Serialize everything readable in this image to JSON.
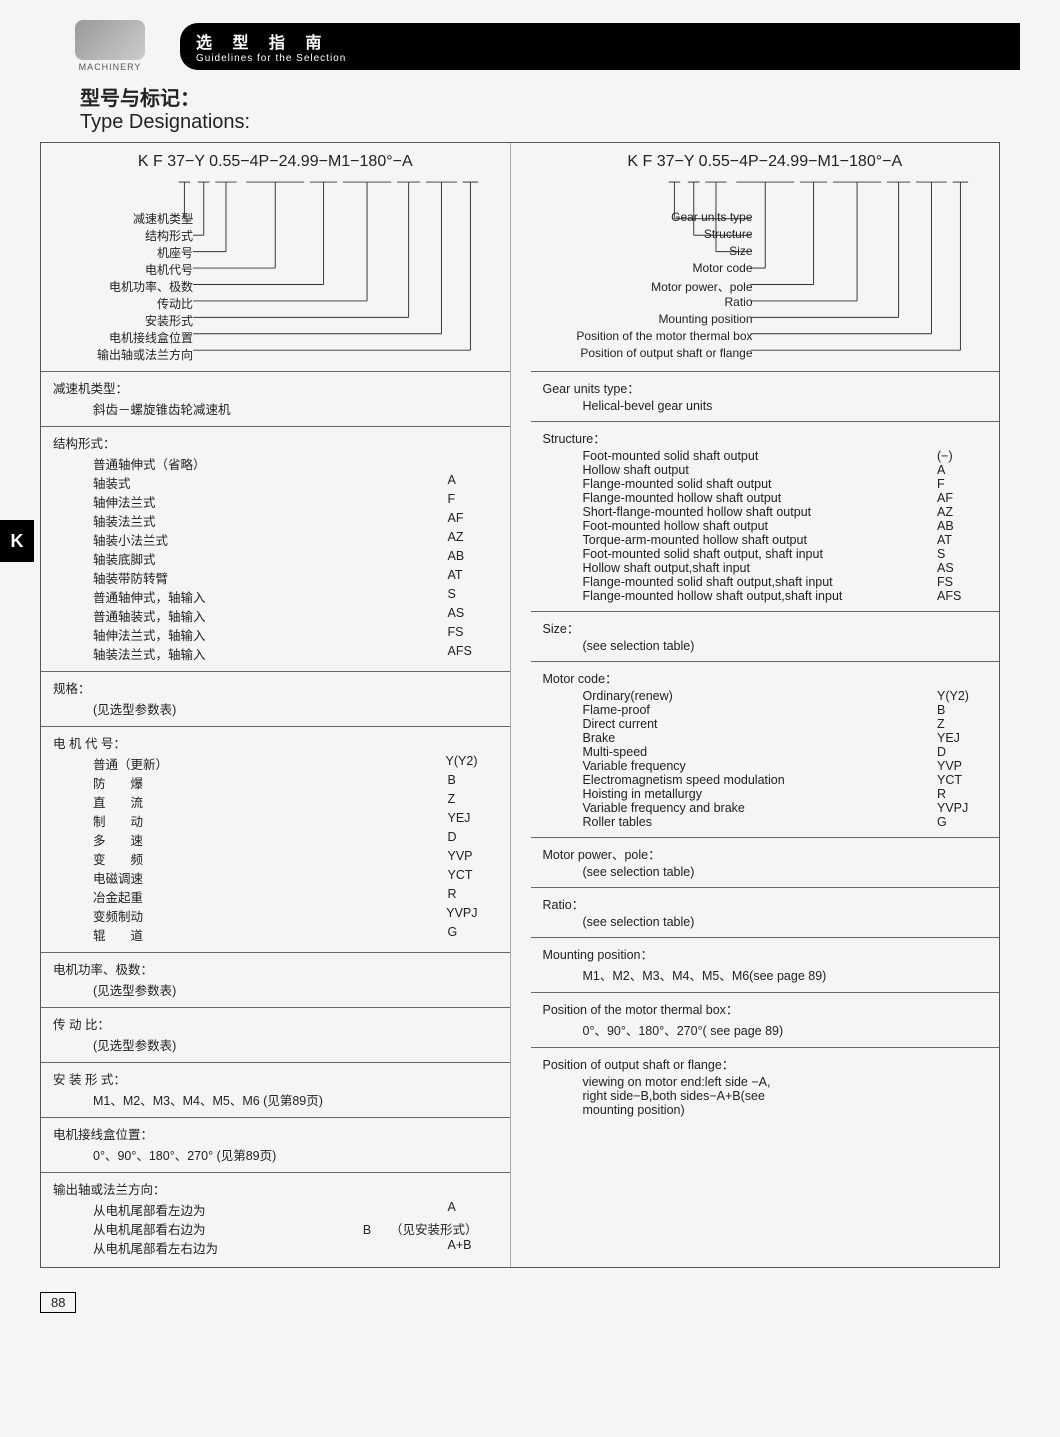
{
  "header": {
    "machinery": "MACHINERY",
    "band_cn": "选 型 指 南",
    "band_en": "Guidelines for the Selection"
  },
  "title": {
    "cn": "型号与标记：",
    "en": "Type Designations:"
  },
  "side_tab": "K",
  "page_number": "88",
  "designation_string": "K F 37−Y 0.55−4P−24.99−M1−180°−A",
  "callouts_cn": [
    "减速机类型",
    "结构形式",
    "机座号",
    "电机代号",
    "电机功率、极数",
    "传动比",
    "安装形式",
    "电机接线盒位置",
    "输出轴或法兰方向"
  ],
  "callouts_en": [
    "Gear units type",
    "Structure",
    "Size",
    "Motor code",
    "Motor power、pole",
    "Ratio",
    "Mounting position",
    "Position of the motor thermal box",
    "Position of output shaft or flange"
  ],
  "sections_cn": [
    {
      "title": "减速机类型：",
      "body_lines": [
        "斜齿－螺旋锥齿轮减速机"
      ]
    },
    {
      "title": "结构形式：",
      "rows": [
        [
          "普通轴伸式（省略）",
          ""
        ],
        [
          "轴装式",
          "A"
        ],
        [
          "轴伸法兰式",
          "F"
        ],
        [
          "轴装法兰式",
          "AF"
        ],
        [
          "轴装小法兰式",
          "AZ"
        ],
        [
          "轴装底脚式",
          "AB"
        ],
        [
          "轴装带防转臂",
          "AT"
        ],
        [
          "普通轴伸式，轴输入",
          "S"
        ],
        [
          "普通轴装式，轴输入",
          "AS"
        ],
        [
          "轴伸法兰式，轴输入",
          "FS"
        ],
        [
          "轴装法兰式，轴输入",
          "AFS"
        ]
      ]
    },
    {
      "title": "规格：",
      "body_lines": [
        "(见选型参数表)"
      ]
    },
    {
      "title": "电 机 代 号：",
      "rows": [
        [
          "普通（更新）",
          "Y(Y2)"
        ],
        [
          "防　　爆",
          "B"
        ],
        [
          "直　　流",
          "Z"
        ],
        [
          "制　　动",
          "YEJ"
        ],
        [
          "多　　速",
          "D"
        ],
        [
          "变　　频",
          "YVP"
        ],
        [
          "电磁调速",
          "YCT"
        ],
        [
          "冶金起重",
          "R"
        ],
        [
          "变频制动",
          "YVPJ"
        ],
        [
          "辊　　道",
          "G"
        ]
      ]
    },
    {
      "title": "电机功率、极数：",
      "body_lines": [
        "(见选型参数表)"
      ]
    },
    {
      "title": "传 动 比：",
      "body_lines": [
        "(见选型参数表)"
      ]
    },
    {
      "title": "安 装 形 式：",
      "body_lines": [
        "M1、M2、M3、M4、M5、M6 (见第89页)"
      ]
    },
    {
      "title": "电机接线盒位置：",
      "body_lines": [
        "0°、90°、180°、270° (见第89页)"
      ]
    },
    {
      "title": "输出轴或法兰方向：",
      "rows": [
        [
          "从电机尾部看左边为",
          "A"
        ],
        [
          "从电机尾部看右边为",
          "B　　（见安装形式）"
        ],
        [
          "从电机尾部看左右边为",
          "A+B"
        ]
      ]
    }
  ],
  "sections_en": [
    {
      "title": "Gear units type：",
      "body_lines": [
        "Helical-bevel gear units"
      ]
    },
    {
      "title": "Structure：",
      "rows": [
        [
          "Foot-mounted solid shaft output",
          "(−)"
        ],
        [
          "Hollow shaft output",
          "A"
        ],
        [
          "Flange-mounted solid shaft output",
          "F"
        ],
        [
          "Flange-mounted hollow shaft output",
          "AF"
        ],
        [
          "Short-flange-mounted hollow shaft output",
          "AZ"
        ],
        [
          "Foot-mounted hollow shaft output",
          "AB"
        ],
        [
          "Torque-arm-mounted hollow shaft output",
          "AT"
        ],
        [
          "Foot-mounted solid shaft output, shaft input",
          "S"
        ],
        [
          "Hollow shaft output,shaft input",
          "AS"
        ],
        [
          "Flange-mounted solid shaft output,shaft input",
          "FS"
        ],
        [
          "Flange-mounted hollow shaft output,shaft input",
          "AFS"
        ]
      ]
    },
    {
      "title": "Size：",
      "body_lines": [
        "(see selection table)"
      ]
    },
    {
      "title": "Motor code：",
      "rows": [
        [
          "Ordinary(renew)",
          "Y(Y2)"
        ],
        [
          "Flame-proof",
          "B"
        ],
        [
          "Direct current",
          "Z"
        ],
        [
          "Brake",
          "YEJ"
        ],
        [
          "Multi-speed",
          "D"
        ],
        [
          "Variable frequency",
          "YVP"
        ],
        [
          "Electromagnetism speed modulation",
          "YCT"
        ],
        [
          "Hoisting in metallurgy",
          "R"
        ],
        [
          "Variable frequency and brake",
          "YVPJ"
        ],
        [
          "Roller tables",
          "G"
        ]
      ]
    },
    {
      "title": "Motor power、pole：",
      "body_lines": [
        "(see selection table)"
      ]
    },
    {
      "title": "Ratio：",
      "body_lines": [
        "(see selection table)"
      ]
    },
    {
      "title": "Mounting position：",
      "body_lines": [
        "M1、M2、M3、M4、M5、M6(see page 89)"
      ]
    },
    {
      "title": "Position of the motor thermal box：",
      "body_lines": [
        "0°、90°、180°、270°( see page 89)"
      ]
    },
    {
      "title": "Position of output shaft or flange：",
      "body_lines": [
        "viewing on motor end:left side −A,",
        "right side−B,both sides−A+B(see",
        "mounting position)"
      ]
    }
  ],
  "colors": {
    "line": "#333333",
    "bg": "#f5f5f5",
    "text": "#222222",
    "band": "#000000"
  }
}
